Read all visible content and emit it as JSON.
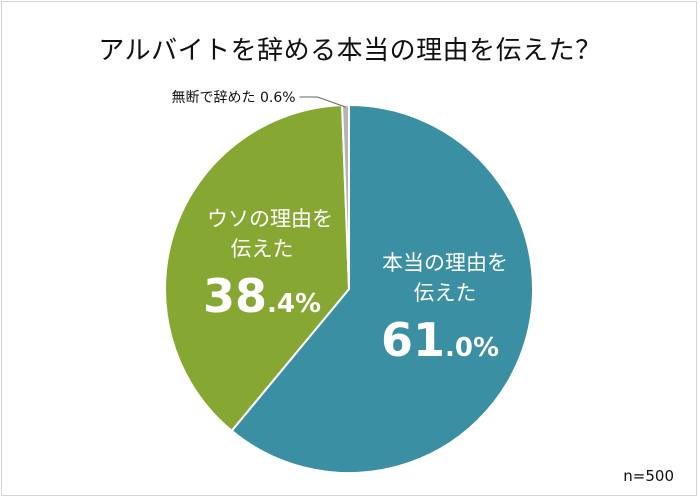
{
  "title": "アルバイトを辞める本当の理由を伝えた？",
  "sample_note": "n=500",
  "colors": {
    "teal": "#3b8fa3",
    "green": "#86a832",
    "gray": "#b4b4b4",
    "bg": "#ffffff"
  },
  "chart_data": {
    "type": "pie",
    "title": "アルバイトを辞める本当の理由を伝えた？",
    "start": "12 o'clock, clockwise",
    "slices": [
      {
        "label": "本当の理由を伝えた",
        "value": 61.0,
        "value_int": "61",
        "value_dec": ".0%",
        "color": "#3b8fa3"
      },
      {
        "label": "ウソの理由を伝えた",
        "value": 38.4,
        "value_int": "38",
        "value_dec": ".4%",
        "color": "#86a832"
      },
      {
        "label": "無断で辞めた",
        "value": 0.6,
        "value_text": "0.6%",
        "color": "#b4b4b4"
      }
    ],
    "annotation": "n=500"
  }
}
